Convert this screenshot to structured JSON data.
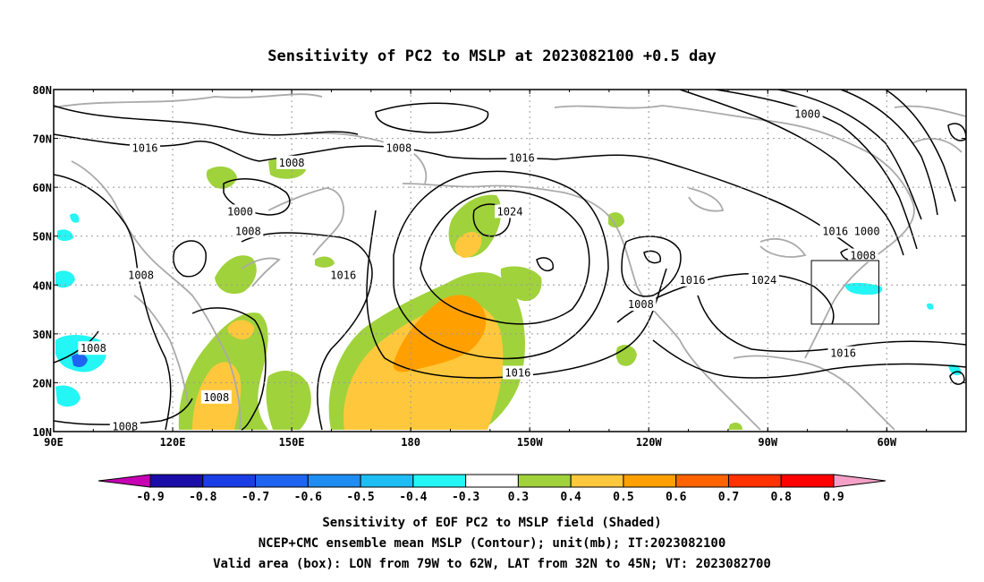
{
  "title": "Sensitivity of PC2 to MSLP at 2023082100 +0.5 day",
  "map": {
    "lon_ticks": [
      "90E",
      "120E",
      "150E",
      "180",
      "150W",
      "120W",
      "90W",
      "60W"
    ],
    "lat_ticks": [
      "80N",
      "70N",
      "60N",
      "50N",
      "40N",
      "30N",
      "20N",
      "10N"
    ],
    "contour_labels": [
      {
        "text": "1016",
        "lon": 113,
        "lat": 68
      },
      {
        "text": "1008",
        "lon": 150,
        "lat": 65
      },
      {
        "text": "1008",
        "lon": 177,
        "lat": 68
      },
      {
        "text": "1016",
        "lon": -152,
        "lat": 66
      },
      {
        "text": "1000",
        "lon": -80,
        "lat": 75
      },
      {
        "text": "1000",
        "lon": 137,
        "lat": 55
      },
      {
        "text": "1008",
        "lon": 139,
        "lat": 51
      },
      {
        "text": "1024",
        "lon": -155,
        "lat": 55
      },
      {
        "text": "1008",
        "lon": 112,
        "lat": 42
      },
      {
        "text": "1016",
        "lon": 163,
        "lat": 42
      },
      {
        "text": "1016",
        "lon": -109,
        "lat": 41
      },
      {
        "text": "1024",
        "lon": -91,
        "lat": 41
      },
      {
        "text": "1016",
        "lon": -73,
        "lat": 51
      },
      {
        "text": "1000",
        "lon": -65,
        "lat": 51
      },
      {
        "text": "1008",
        "lon": -66,
        "lat": 46
      },
      {
        "text": "1008",
        "lon": -122,
        "lat": 36
      },
      {
        "text": "1008",
        "lon": 100,
        "lat": 27
      },
      {
        "text": "1016",
        "lon": -153,
        "lat": 22
      },
      {
        "text": "1016",
        "lon": -71,
        "lat": 26
      },
      {
        "text": "1008",
        "lon": 131,
        "lat": 17
      },
      {
        "text": "1008",
        "lon": 108,
        "lat": 11
      }
    ],
    "valid_box": {
      "lon_min": -79,
      "lon_max": -62,
      "lat_min": 32,
      "lat_max": 45
    }
  },
  "colorbar": {
    "labels": [
      "-0.9",
      "-0.8",
      "-0.7",
      "-0.6",
      "-0.5",
      "-0.4",
      "-0.3",
      "0.3",
      "0.4",
      "0.5",
      "0.6",
      "0.7",
      "0.8",
      "0.9"
    ],
    "colors": [
      "#1a0da8",
      "#1a3de6",
      "#1e64f0",
      "#1e8cf0",
      "#1ebef5",
      "#24f5f5",
      "#ffffff",
      "#a0d23c",
      "#ffc83c",
      "#ffa000",
      "#ff6400",
      "#ff3200",
      "#ff0000"
    ],
    "low_end_color": "#c800b4",
    "high_end_color": "#f5a0c8"
  },
  "captions": {
    "line1": "Sensitivity of EOF PC2 to MSLP field (Shaded)",
    "line2": "NCEP+CMC ensemble mean MSLP (Contour); unit(mb); IT:2023082100",
    "line3": "Valid area (box): LON from 79W to 62W, LAT from 32N to 45N; VT: 2023082700"
  }
}
